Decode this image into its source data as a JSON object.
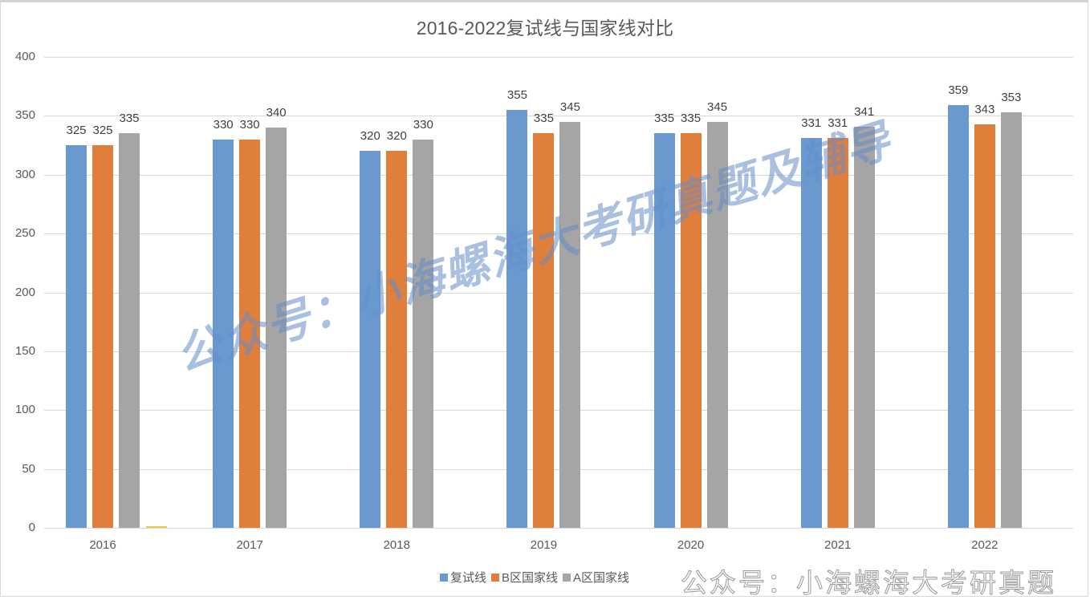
{
  "title": "2016-2022复试线与国家线对比",
  "colors": {
    "retest": "#6a99d0",
    "b_zone": "#e07f3c",
    "a_zone": "#a5a5a5",
    "grid": "#d9d9d9",
    "text": "#595959"
  },
  "y_axis": {
    "ticks": [
      "0",
      "50",
      "100",
      "150",
      "200",
      "250",
      "300",
      "350",
      "400"
    ]
  },
  "x_axis": {
    "ticks": [
      "2016",
      "2017",
      "2018",
      "2019",
      "2020",
      "2021",
      "2022"
    ]
  },
  "legend": {
    "items": [
      "复试线",
      "B区国家线",
      "A区国家线"
    ]
  },
  "watermarks": {
    "diagonal": "公众号：小海螺海大考研真题及辅导",
    "corner": "公众号：小海螺海大考研真题"
  },
  "chart_data": {
    "type": "bar",
    "title": "2016-2022复试线与国家线对比",
    "categories": [
      "2016",
      "2017",
      "2018",
      "2019",
      "2020",
      "2021",
      "2022"
    ],
    "series": [
      {
        "name": "复试线",
        "color": "#6a99d0",
        "values": [
          325,
          330,
          320,
          355,
          335,
          331,
          359
        ]
      },
      {
        "name": "B区国家线",
        "color": "#e07f3c",
        "values": [
          325,
          330,
          320,
          335,
          335,
          331,
          343
        ]
      },
      {
        "name": "A区国家线",
        "color": "#a5a5a5",
        "values": [
          335,
          340,
          330,
          345,
          345,
          341,
          353
        ]
      }
    ],
    "xlabel": "",
    "ylabel": "",
    "ylim": [
      0,
      400
    ],
    "yticks": [
      0,
      50,
      100,
      150,
      200,
      250,
      300,
      350,
      400
    ],
    "grid": true,
    "legend_position": "bottom",
    "data_labels": true
  }
}
